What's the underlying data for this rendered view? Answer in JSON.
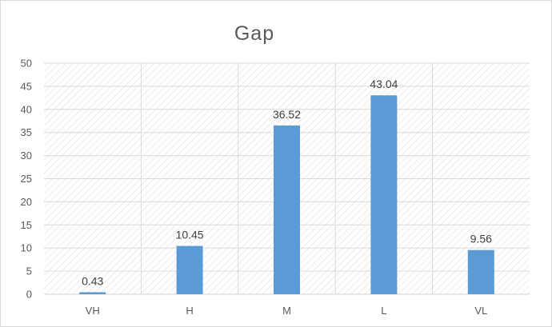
{
  "chart_data": {
    "type": "bar",
    "title": "Gap",
    "xlabel": "",
    "ylabel": "",
    "categories": [
      "VH",
      "H",
      "M",
      "L",
      "VL"
    ],
    "values": [
      0.43,
      10.45,
      36.52,
      43.04,
      9.56
    ],
    "data_labels": [
      "0.43",
      "10.45",
      "36.52",
      "43.04",
      "9.56"
    ],
    "ylim": [
      0,
      50
    ],
    "y_ticks": [
      0,
      5,
      10,
      15,
      20,
      25,
      30,
      35,
      40,
      45,
      50
    ],
    "grid": true,
    "legend": "none",
    "bar_color": "#5b9bd5",
    "plot_area_pattern": "diagonal-hatch"
  }
}
